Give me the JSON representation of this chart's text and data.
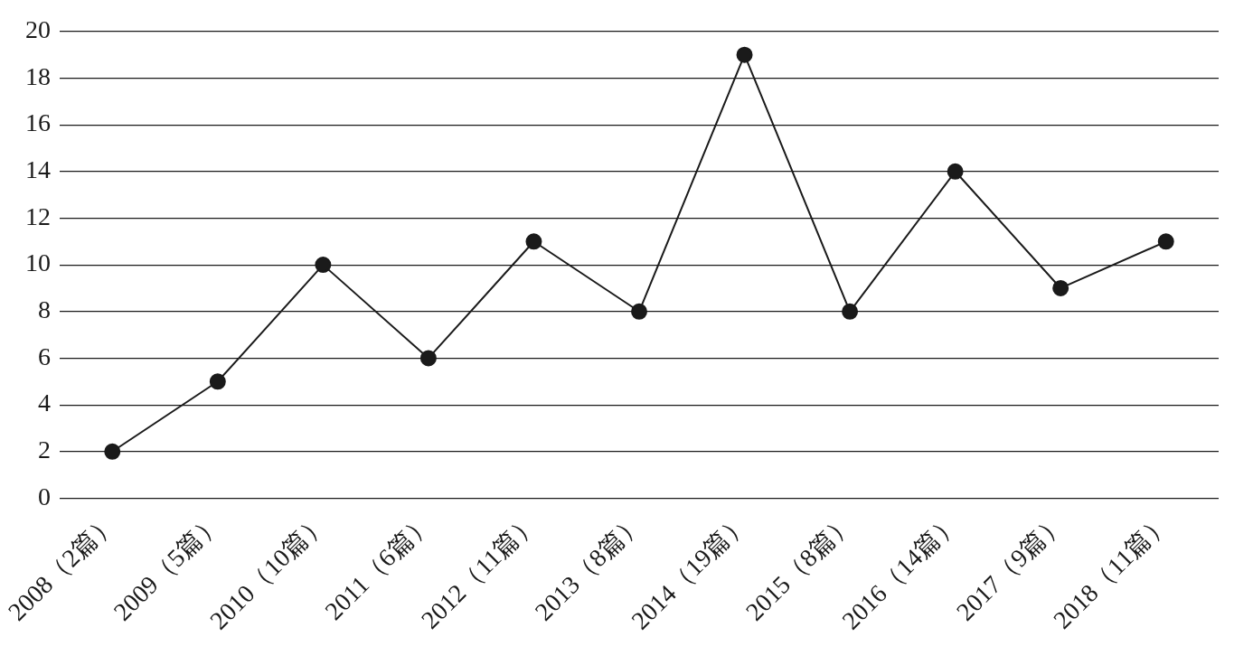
{
  "chart_data": {
    "type": "line",
    "categories": [
      "2008（2篇）",
      "2009（5篇）",
      "2010（10篇）",
      "2011（6篇）",
      "2012（11篇）",
      "2013（8篇）",
      "2014（19篇）",
      "2015（8篇）",
      "2016（14篇）",
      "2017（9篇）",
      "2018（11篇）"
    ],
    "values": [
      2,
      5,
      10,
      6,
      11,
      8,
      19,
      8,
      14,
      9,
      11
    ],
    "color": "#1a1a1a",
    "ylim": [
      0,
      20
    ],
    "yticks": [
      0,
      2,
      4,
      6,
      8,
      10,
      12,
      14,
      16,
      18,
      20
    ],
    "grid": "y",
    "marker": "circle",
    "legend": false
  }
}
